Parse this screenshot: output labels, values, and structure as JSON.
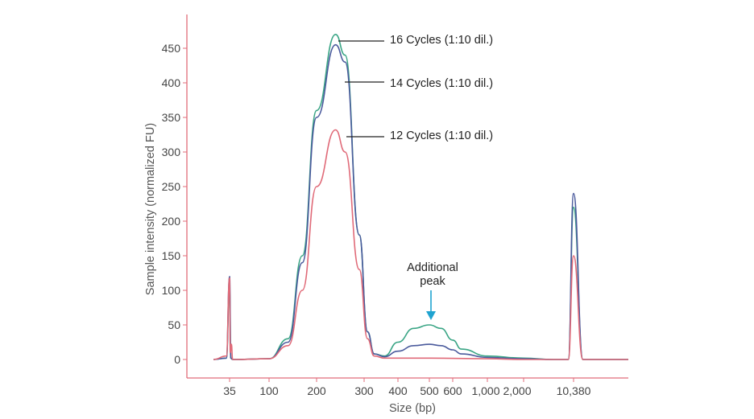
{
  "chart_data": {
    "type": "line",
    "xlabel": "Size (bp)",
    "ylabel": "Sample intensity (normalized FU)",
    "ylim": [
      -25,
      480
    ],
    "y_ticks": [
      0,
      50,
      100,
      150,
      200,
      250,
      300,
      350,
      400,
      450
    ],
    "x_ticks": [
      "35",
      "100",
      "200",
      "300",
      "400",
      "500",
      "600",
      "1,000",
      "2,000",
      "10,380"
    ],
    "x_tick_values": [
      35,
      100,
      200,
      300,
      400,
      500,
      600,
      1000,
      2000,
      10380
    ],
    "grid": false,
    "colors": {
      "axis": "#e06c7a",
      "annotation_arrow": "#1fa3d0"
    },
    "series": [
      {
        "name": "16 Cycles (1:10 dil.)",
        "color": "#3aa585",
        "points": [
          [
            25,
            0
          ],
          [
            33,
            2
          ],
          [
            35,
            100
          ],
          [
            37,
            2
          ],
          [
            40,
            0
          ],
          [
            100,
            1
          ],
          [
            140,
            30
          ],
          [
            170,
            150
          ],
          [
            200,
            360
          ],
          [
            240,
            470
          ],
          [
            260,
            440
          ],
          [
            290,
            180
          ],
          [
            310,
            40
          ],
          [
            330,
            8
          ],
          [
            360,
            5
          ],
          [
            400,
            25
          ],
          [
            450,
            45
          ],
          [
            500,
            50
          ],
          [
            550,
            45
          ],
          [
            600,
            28
          ],
          [
            700,
            15
          ],
          [
            1000,
            5
          ],
          [
            2000,
            2
          ],
          [
            7000,
            0
          ],
          [
            9500,
            0
          ],
          [
            10380,
            220
          ],
          [
            11000,
            0
          ],
          [
            14000,
            0
          ]
        ]
      },
      {
        "name": "14 Cycles (1:10 dil.)",
        "color": "#4a5a9c",
        "points": [
          [
            25,
            0
          ],
          [
            33,
            2
          ],
          [
            35,
            120
          ],
          [
            37,
            2
          ],
          [
            40,
            0
          ],
          [
            100,
            1
          ],
          [
            140,
            25
          ],
          [
            170,
            140
          ],
          [
            200,
            350
          ],
          [
            240,
            455
          ],
          [
            260,
            430
          ],
          [
            290,
            180
          ],
          [
            310,
            40
          ],
          [
            330,
            8
          ],
          [
            360,
            4
          ],
          [
            400,
            12
          ],
          [
            450,
            20
          ],
          [
            500,
            22
          ],
          [
            550,
            20
          ],
          [
            600,
            14
          ],
          [
            700,
            8
          ],
          [
            1000,
            3
          ],
          [
            2000,
            1
          ],
          [
            7000,
            0
          ],
          [
            9500,
            0
          ],
          [
            10380,
            240
          ],
          [
            11000,
            0
          ],
          [
            14000,
            0
          ]
        ]
      },
      {
        "name": "12 Cycles (1:10 dil.)",
        "color": "#e06a78",
        "points": [
          [
            25,
            0
          ],
          [
            33,
            5
          ],
          [
            35,
            118
          ],
          [
            36,
            10
          ],
          [
            38,
            22
          ],
          [
            40,
            0
          ],
          [
            100,
            1
          ],
          [
            140,
            20
          ],
          [
            170,
            100
          ],
          [
            200,
            250
          ],
          [
            240,
            332
          ],
          [
            260,
            300
          ],
          [
            290,
            130
          ],
          [
            310,
            30
          ],
          [
            330,
            5
          ],
          [
            360,
            2
          ],
          [
            500,
            2
          ],
          [
            1000,
            1
          ],
          [
            2000,
            0
          ],
          [
            7000,
            0
          ],
          [
            9500,
            0
          ],
          [
            10380,
            150
          ],
          [
            11000,
            0
          ],
          [
            14000,
            0
          ]
        ]
      }
    ],
    "annotations": [
      {
        "text": "16 Cycles (1:10 dil.)",
        "series": 0,
        "x": 240,
        "y": 470
      },
      {
        "text": "14 Cycles (1:10 dil.)",
        "series": 1,
        "x": 245,
        "y": 418
      },
      {
        "text": "12 Cycles (1:10 dil.)",
        "series": 2,
        "x": 248,
        "y": 320
      },
      {
        "text": "Additional",
        "x": 500,
        "y": 50
      },
      {
        "text": "peak",
        "x": 500,
        "y": 50
      }
    ]
  }
}
